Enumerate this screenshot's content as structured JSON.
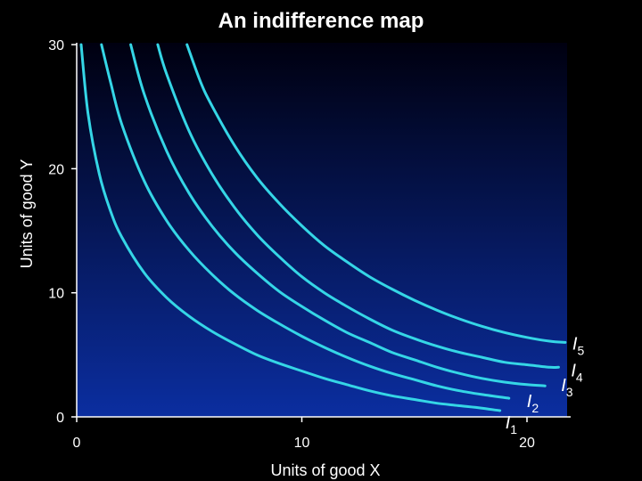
{
  "colors": {
    "background": "#000000",
    "plot_top": "#000010",
    "plot_bottom": "#0b2ea0",
    "curve": "#35d6e6",
    "text": "#ffffff",
    "tick": "#ffffff"
  },
  "chart_data": {
    "type": "line",
    "title": "An indifference map",
    "xlabel": "Units of good X",
    "ylabel": "Units of good Y",
    "xlim": [
      0,
      22
    ],
    "ylim": [
      0,
      30
    ],
    "xticks": [
      0,
      10,
      20
    ],
    "yticks": [
      0,
      10,
      20,
      30
    ],
    "grid": false,
    "series": [
      {
        "name": "I1",
        "label_main": "I",
        "label_sub": "1",
        "x": [
          0.2,
          0.5,
          1,
          1.5,
          2,
          3,
          4,
          5,
          6,
          7,
          8,
          9,
          10,
          11,
          12,
          13,
          14,
          15,
          16,
          17,
          18,
          18.8
        ],
        "y": [
          30,
          24.5,
          19.6,
          16.6,
          14.5,
          11.6,
          9.6,
          8.1,
          6.9,
          5.9,
          5.0,
          4.3,
          3.7,
          3.1,
          2.6,
          2.1,
          1.7,
          1.4,
          1.1,
          0.9,
          0.7,
          0.5
        ]
      },
      {
        "name": "I2",
        "label_main": "I",
        "label_sub": "2",
        "x": [
          1.1,
          1.5,
          2,
          3,
          4,
          5,
          6,
          7,
          8,
          9,
          10,
          11,
          12,
          13,
          14,
          15,
          16,
          17,
          18,
          19.2
        ],
        "y": [
          30,
          27.0,
          23.6,
          19.0,
          15.8,
          13.4,
          11.5,
          9.9,
          8.6,
          7.5,
          6.5,
          5.6,
          4.8,
          4.1,
          3.5,
          3.0,
          2.5,
          2.1,
          1.8,
          1.5
        ]
      },
      {
        "name": "I3",
        "label_main": "I",
        "label_sub": "3",
        "x": [
          2.4,
          3,
          4,
          5,
          6,
          7,
          8,
          9,
          10,
          11,
          12,
          13,
          14,
          15,
          16,
          17,
          18,
          19,
          20,
          20.8
        ],
        "y": [
          30,
          26.0,
          21.4,
          18.0,
          15.4,
          13.3,
          11.6,
          10.1,
          8.9,
          7.8,
          6.8,
          6.0,
          5.2,
          4.6,
          4.0,
          3.5,
          3.1,
          2.8,
          2.6,
          2.5
        ]
      },
      {
        "name": "I4",
        "label_main": "I",
        "label_sub": "4",
        "x": [
          3.6,
          4,
          5,
          6,
          7,
          8,
          9,
          10,
          11,
          12,
          13,
          14,
          15,
          16,
          17,
          18,
          19,
          20,
          21,
          21.4
        ],
        "y": [
          30,
          27.6,
          23.0,
          19.6,
          16.9,
          14.7,
          12.9,
          11.3,
          10.0,
          8.9,
          7.9,
          7.0,
          6.3,
          5.7,
          5.2,
          4.8,
          4.4,
          4.2,
          4.0,
          4.0
        ]
      },
      {
        "name": "I5",
        "label_main": "I",
        "label_sub": "5",
        "x": [
          4.9,
          5.5,
          6,
          7,
          8,
          9,
          10,
          11,
          12,
          13,
          14,
          15,
          16,
          17,
          18,
          19,
          20,
          21,
          21.7
        ],
        "y": [
          30,
          27.0,
          25.1,
          21.9,
          19.3,
          17.2,
          15.4,
          13.8,
          12.5,
          11.3,
          10.3,
          9.4,
          8.6,
          7.9,
          7.3,
          6.8,
          6.4,
          6.1,
          6.0
        ]
      }
    ]
  }
}
